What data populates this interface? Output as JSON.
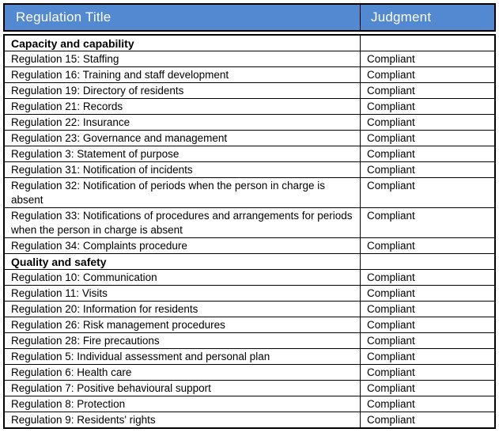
{
  "table": {
    "columns": [
      "Regulation Title",
      "Judgment"
    ],
    "colors": {
      "header_bg": "#5389D0",
      "header_text": "#ffffff",
      "border": "#000000",
      "body_text": "#000000"
    },
    "sections": [
      {
        "name": "Capacity and capability",
        "rows": [
          {
            "title": "Regulation 15: Staffing",
            "judgment": "Compliant"
          },
          {
            "title": "Regulation 16: Training and staff development",
            "judgment": "Compliant"
          },
          {
            "title": "Regulation 19: Directory of residents",
            "judgment": "Compliant"
          },
          {
            "title": "Regulation 21: Records",
            "judgment": "Compliant"
          },
          {
            "title": "Regulation 22: Insurance",
            "judgment": "Compliant"
          },
          {
            "title": "Regulation 23: Governance and management",
            "judgment": "Compliant"
          },
          {
            "title": "Regulation 3: Statement of purpose",
            "judgment": "Compliant"
          },
          {
            "title": "Regulation 31: Notification of incidents",
            "judgment": "Compliant"
          },
          {
            "title": "Regulation 32: Notification of periods when the person in charge is absent",
            "judgment": "Compliant"
          },
          {
            "title": "Regulation 33: Notifications of procedures and arrangements for periods when the person in charge is absent",
            "judgment": "Compliant"
          },
          {
            "title": "Regulation 34: Complaints procedure",
            "judgment": "Compliant"
          }
        ]
      },
      {
        "name": "Quality and safety",
        "rows": [
          {
            "title": "Regulation 10: Communication",
            "judgment": "Compliant"
          },
          {
            "title": "Regulation 11: Visits",
            "judgment": "Compliant"
          },
          {
            "title": "Regulation 20: Information for residents",
            "judgment": "Compliant"
          },
          {
            "title": "Regulation 26: Risk management procedures",
            "judgment": "Compliant"
          },
          {
            "title": "Regulation 28: Fire precautions",
            "judgment": "Compliant"
          },
          {
            "title": "Regulation 5: Individual assessment and personal plan",
            "judgment": "Compliant"
          },
          {
            "title": "Regulation 6: Health care",
            "judgment": "Compliant"
          },
          {
            "title": "Regulation 7: Positive behavioural support",
            "judgment": "Compliant"
          },
          {
            "title": "Regulation 8: Protection",
            "judgment": "Compliant"
          },
          {
            "title": "Regulation 9: Residents' rights",
            "judgment": "Compliant"
          }
        ]
      }
    ]
  }
}
